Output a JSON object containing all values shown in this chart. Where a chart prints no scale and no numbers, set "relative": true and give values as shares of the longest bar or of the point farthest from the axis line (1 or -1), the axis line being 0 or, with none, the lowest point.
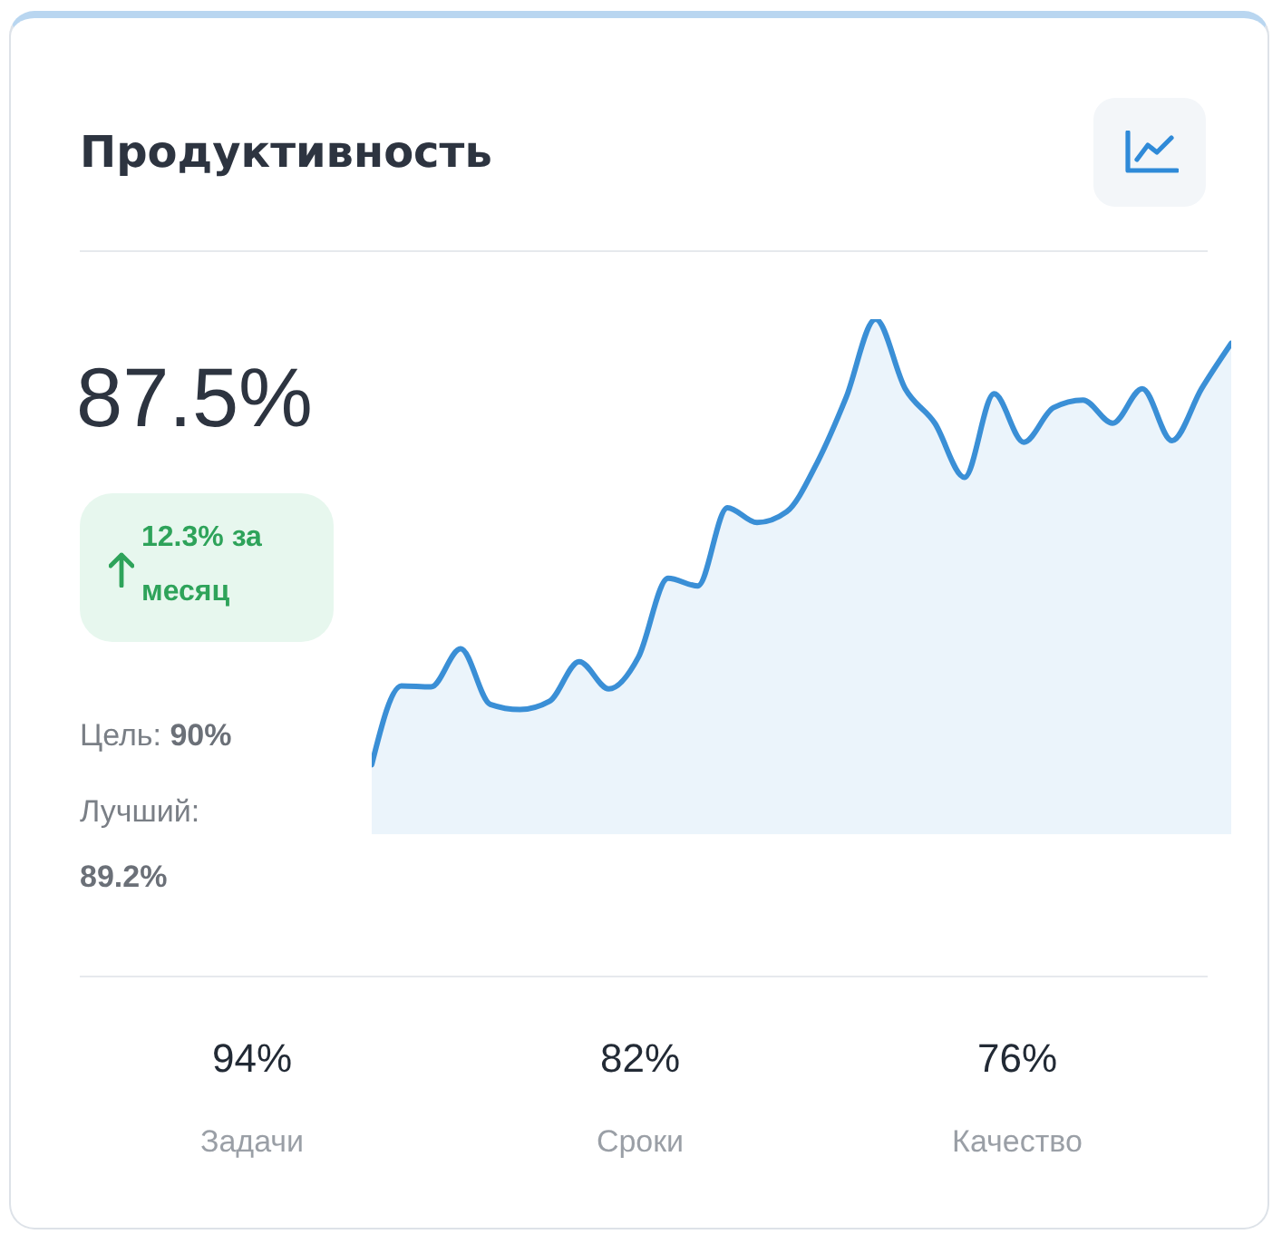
{
  "chart_data": {
    "type": "area",
    "title": "Продуктивность",
    "relative": true,
    "categories": [
      null,
      null,
      null,
      null,
      null,
      null,
      null,
      null,
      null,
      null,
      null,
      null,
      null,
      null,
      null,
      null,
      null,
      null,
      null,
      null,
      null,
      null,
      null,
      null,
      null,
      null,
      null,
      null,
      null,
      null
    ],
    "series": [
      {
        "color": "#3a8fd6",
        "values": [
          0.135,
          0.288,
          0.286,
          0.36,
          0.252,
          0.242,
          0.258,
          0.335,
          0.282,
          0.344,
          0.497,
          0.482,
          0.634,
          0.605,
          0.626,
          0.718,
          0.847,
          1,
          0.865,
          0.798,
          0.693,
          0.855,
          0.761,
          0.828,
          0.843,
          0.798,
          0.865,
          0.764,
          0.865,
          0.953
        ]
      }
    ],
    "annotations": [
      "87.5%",
      "12.3% за месяц",
      "Цель: 90%",
      "Лучший: 89.2%",
      "94%",
      "Задачи",
      "82%",
      "Сроки",
      "76%",
      "Качество"
    ]
  }
}
